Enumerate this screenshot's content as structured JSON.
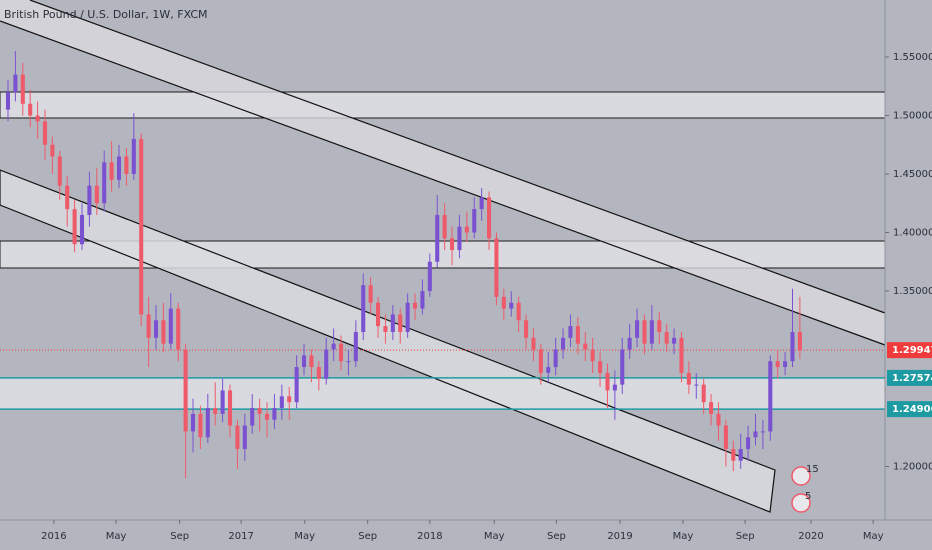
{
  "chart_data": {
    "type": "candlestick",
    "title": "British Pound / U.S. Dollar, 1W, FXCM",
    "up_color": "#7a52d1",
    "down_color": "#ef5a6a",
    "open": [
      1.505,
      1.52,
      1.535,
      1.51,
      1.5,
      1.495,
      1.475,
      1.465,
      1.44,
      1.42,
      1.39,
      1.415,
      1.44,
      1.425,
      1.46,
      1.445,
      1.465,
      1.45,
      1.48,
      1.33,
      1.31,
      1.325,
      1.305,
      1.335,
      1.3,
      1.23,
      1.245,
      1.225,
      1.25,
      1.245,
      1.265,
      1.235,
      1.215,
      1.235,
      1.25,
      1.245,
      1.24,
      1.25,
      1.26,
      1.255,
      1.285,
      1.295,
      1.285,
      1.275,
      1.3,
      1.305,
      1.29,
      1.29,
      1.315,
      1.355,
      1.34,
      1.32,
      1.315,
      1.33,
      1.315,
      1.34,
      1.335,
      1.35,
      1.375,
      1.415,
      1.395,
      1.385,
      1.405,
      1.4,
      1.42,
      1.43,
      1.395,
      1.345,
      1.335,
      1.34,
      1.325,
      1.31,
      1.3,
      1.28,
      1.285,
      1.3,
      1.31,
      1.32,
      1.305,
      1.3,
      1.29,
      1.28,
      1.265,
      1.27,
      1.3,
      1.31,
      1.325,
      1.305,
      1.325,
      1.315,
      1.305,
      1.31,
      1.28,
      1.27,
      1.27,
      1.255,
      1.245,
      1.235,
      1.215,
      1.205,
      1.215,
      1.225,
      1.23,
      1.23,
      1.29,
      1.285,
      1.29,
      1.315
    ],
    "high": [
      1.53,
      1.555,
      1.545,
      1.522,
      1.512,
      1.505,
      1.482,
      1.47,
      1.448,
      1.428,
      1.425,
      1.452,
      1.455,
      1.47,
      1.478,
      1.475,
      1.472,
      1.502,
      1.485,
      1.345,
      1.338,
      1.34,
      1.348,
      1.34,
      1.305,
      1.258,
      1.252,
      1.262,
      1.272,
      1.275,
      1.27,
      1.24,
      1.245,
      1.262,
      1.258,
      1.255,
      1.262,
      1.27,
      1.268,
      1.295,
      1.305,
      1.3,
      1.29,
      1.31,
      1.318,
      1.312,
      1.3,
      1.325,
      1.365,
      1.362,
      1.345,
      1.33,
      1.338,
      1.335,
      1.348,
      1.348,
      1.36,
      1.382,
      1.432,
      1.425,
      1.405,
      1.415,
      1.418,
      1.43,
      1.438,
      1.435,
      1.4,
      1.352,
      1.35,
      1.345,
      1.33,
      1.318,
      1.305,
      1.298,
      1.31,
      1.318,
      1.33,
      1.328,
      1.315,
      1.31,
      1.298,
      1.288,
      1.282,
      1.31,
      1.322,
      1.335,
      1.33,
      1.338,
      1.332,
      1.322,
      1.318,
      1.315,
      1.29,
      1.28,
      1.275,
      1.262,
      1.255,
      1.24,
      1.222,
      1.228,
      1.235,
      1.245,
      1.24,
      1.295,
      1.3,
      1.298,
      1.352,
      1.345
    ],
    "low": [
      1.495,
      1.512,
      1.5,
      1.49,
      1.48,
      1.462,
      1.45,
      1.428,
      1.405,
      1.383,
      1.385,
      1.405,
      1.415,
      1.418,
      1.435,
      1.438,
      1.44,
      1.445,
      1.32,
      1.285,
      1.3,
      1.298,
      1.3,
      1.29,
      1.19,
      1.212,
      1.215,
      1.22,
      1.235,
      1.238,
      1.225,
      1.198,
      1.205,
      1.228,
      1.23,
      1.225,
      1.232,
      1.24,
      1.24,
      1.25,
      1.278,
      1.272,
      1.265,
      1.27,
      1.29,
      1.282,
      1.278,
      1.285,
      1.308,
      1.33,
      1.31,
      1.305,
      1.308,
      1.305,
      1.31,
      1.325,
      1.33,
      1.345,
      1.37,
      1.385,
      1.372,
      1.378,
      1.392,
      1.395,
      1.41,
      1.385,
      1.338,
      1.325,
      1.328,
      1.315,
      1.3,
      1.29,
      1.27,
      1.272,
      1.278,
      1.292,
      1.302,
      1.296,
      1.29,
      1.28,
      1.268,
      1.25,
      1.24,
      1.262,
      1.292,
      1.302,
      1.296,
      1.3,
      1.305,
      1.298,
      1.296,
      1.272,
      1.262,
      1.258,
      1.245,
      1.235,
      1.222,
      1.2,
      1.196,
      1.198,
      1.205,
      1.218,
      1.215,
      1.222,
      1.275,
      1.278,
      1.285,
      1.292
    ],
    "close": [
      1.52,
      1.535,
      1.51,
      1.5,
      1.495,
      1.475,
      1.465,
      1.44,
      1.42,
      1.39,
      1.415,
      1.44,
      1.425,
      1.46,
      1.445,
      1.465,
      1.45,
      1.48,
      1.33,
      1.31,
      1.325,
      1.305,
      1.335,
      1.3,
      1.23,
      1.245,
      1.225,
      1.25,
      1.245,
      1.265,
      1.235,
      1.215,
      1.235,
      1.25,
      1.245,
      1.24,
      1.25,
      1.26,
      1.255,
      1.285,
      1.295,
      1.285,
      1.275,
      1.3,
      1.305,
      1.29,
      1.29,
      1.315,
      1.355,
      1.34,
      1.32,
      1.315,
      1.33,
      1.315,
      1.34,
      1.335,
      1.35,
      1.375,
      1.415,
      1.395,
      1.385,
      1.405,
      1.4,
      1.42,
      1.43,
      1.395,
      1.345,
      1.335,
      1.34,
      1.325,
      1.31,
      1.3,
      1.28,
      1.285,
      1.3,
      1.31,
      1.32,
      1.305,
      1.3,
      1.29,
      1.28,
      1.265,
      1.27,
      1.3,
      1.31,
      1.325,
      1.305,
      1.325,
      1.315,
      1.305,
      1.31,
      1.28,
      1.27,
      1.27,
      1.255,
      1.245,
      1.235,
      1.215,
      1.205,
      1.215,
      1.225,
      1.23,
      1.23,
      1.29,
      1.285,
      1.29,
      1.315,
      1.29947
    ],
    "xlim": [
      -1.08,
      118.5
    ],
    "xticks": [
      {
        "value": 6.2,
        "label": "2016"
      },
      {
        "value": 14.6,
        "label": "May"
      },
      {
        "value": 23.2,
        "label": "Sep"
      },
      {
        "value": 31.5,
        "label": "2017"
      },
      {
        "value": 40.1,
        "label": "May"
      },
      {
        "value": 48.6,
        "label": "Sep"
      },
      {
        "value": 57.0,
        "label": "2018"
      },
      {
        "value": 65.7,
        "label": "May"
      },
      {
        "value": 74.1,
        "label": "Sep"
      },
      {
        "value": 82.7,
        "label": "2019"
      },
      {
        "value": 91.2,
        "label": "May"
      },
      {
        "value": 99.6,
        "label": "Sep"
      },
      {
        "value": 108.5,
        "label": "2020"
      },
      {
        "value": 116.9,
        "label": "May"
      }
    ],
    "ylim": [
      1.1543,
      1.5987
    ],
    "yticks": [
      {
        "value": 1.2,
        "label": "1.20000"
      },
      {
        "value": 1.35,
        "label": "1.35000"
      },
      {
        "value": 1.4,
        "label": "1.40000"
      },
      {
        "value": 1.45,
        "label": "1.45000"
      },
      {
        "value": 1.5,
        "label": "1.50000"
      },
      {
        "value": 1.55,
        "label": "1.55000"
      }
    ],
    "grid": false,
    "price_lines": [
      {
        "value": 1.29947,
        "color": "#ef3b3b"
      },
      {
        "value": 1.27574,
        "color": "#1e9aa3"
      },
      {
        "value": 1.24906,
        "color": "#1e9aa3"
      }
    ],
    "events": [
      15,
      5
    ]
  }
}
